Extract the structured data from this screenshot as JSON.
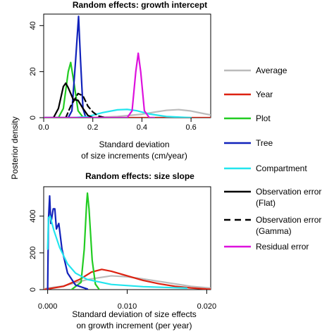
{
  "y_label_shared": "Posterior density",
  "chart_data": [
    {
      "type": "line",
      "title": "Random effects: growth intercept",
      "xlabel_lines": [
        "Standard deviation",
        "of size increments (cm/year)"
      ],
      "ylabel": "",
      "xlim": [
        0,
        0.68
      ],
      "ylim": [
        0,
        45
      ],
      "x_ticks": [
        0.0,
        0.2,
        0.4,
        0.6
      ],
      "x_tick_labels": [
        "0.0",
        "0.2",
        "0.4",
        "0.6"
      ],
      "y_ticks": [
        0,
        20,
        40
      ],
      "y_tick_labels": [
        "0",
        "20",
        "40"
      ],
      "series": [
        {
          "name": "Average",
          "points": [
            [
              0,
              0
            ],
            [
              0.2,
              0.05
            ],
            [
              0.3,
              0.5
            ],
            [
              0.4,
              1.5
            ],
            [
              0.45,
              2.4
            ],
            [
              0.5,
              3.2
            ],
            [
              0.55,
              3.5
            ],
            [
              0.6,
              2.9
            ],
            [
              0.65,
              1.8
            ],
            [
              0.68,
              1.2
            ]
          ]
        },
        {
          "name": "Year",
          "points": [
            [
              0,
              0
            ],
            [
              0.68,
              0
            ]
          ]
        },
        {
          "name": "Plot",
          "points": [
            [
              0,
              0
            ],
            [
              0.06,
              0
            ],
            [
              0.08,
              4
            ],
            [
              0.1,
              20
            ],
            [
              0.11,
              24
            ],
            [
              0.125,
              14
            ],
            [
              0.14,
              3
            ],
            [
              0.16,
              0.2
            ],
            [
              0.18,
              0
            ]
          ]
        },
        {
          "name": "Tree",
          "points": [
            [
              0,
              0
            ],
            [
              0.1,
              0
            ],
            [
              0.115,
              3
            ],
            [
              0.13,
              25
            ],
            [
              0.142,
              44
            ],
            [
              0.15,
              25
            ],
            [
              0.16,
              4
            ],
            [
              0.17,
              0.5
            ],
            [
              0.2,
              0
            ]
          ]
        },
        {
          "name": "Compartment",
          "points": [
            [
              0,
              0
            ],
            [
              0.12,
              0
            ],
            [
              0.18,
              0.5
            ],
            [
              0.24,
              2.2
            ],
            [
              0.3,
              3.4
            ],
            [
              0.34,
              3.6
            ],
            [
              0.38,
              3
            ],
            [
              0.43,
              1.6
            ],
            [
              0.5,
              0.5
            ],
            [
              0.6,
              0
            ]
          ]
        },
        {
          "name": "Observation error (Flat)",
          "points": [
            [
              0.04,
              0
            ],
            [
              0.06,
              4
            ],
            [
              0.08,
              13.5
            ],
            [
              0.09,
              15
            ],
            [
              0.1,
              13
            ],
            [
              0.12,
              8
            ],
            [
              0.14,
              7.5
            ],
            [
              0.16,
              4
            ],
            [
              0.18,
              1
            ],
            [
              0.2,
              0
            ]
          ]
        },
        {
          "name": "Observation error (Gamma)",
          "points": [
            [
              0.09,
              0
            ],
            [
              0.11,
              5
            ],
            [
              0.14,
              10.5
            ],
            [
              0.16,
              9.5
            ],
            [
              0.18,
              5
            ],
            [
              0.2,
              2.5
            ],
            [
              0.22,
              0.8
            ],
            [
              0.25,
              0
            ]
          ]
        },
        {
          "name": "Residual error",
          "points": [
            [
              0,
              0
            ],
            [
              0.34,
              0
            ],
            [
              0.36,
              3
            ],
            [
              0.375,
              20
            ],
            [
              0.385,
              28
            ],
            [
              0.395,
              20
            ],
            [
              0.41,
              3
            ],
            [
              0.43,
              0
            ],
            [
              0.45,
              0
            ]
          ]
        }
      ]
    },
    {
      "type": "line",
      "title": "Random effects: size slope",
      "xlabel_lines": [
        "Standard deviation of size effects",
        "on growth increment (per year)"
      ],
      "ylabel": "",
      "xlim": [
        -0.0005,
        0.0205
      ],
      "ylim": [
        0,
        560
      ],
      "x_ticks": [
        0.0,
        0.01,
        0.02
      ],
      "x_tick_labels": [
        "0.000",
        "0.010",
        "0.020"
      ],
      "y_ticks": [
        0,
        200,
        400
      ],
      "y_tick_labels": [
        "0",
        "200",
        "400"
      ],
      "series": [
        {
          "name": "Average",
          "points": [
            [
              -0.0005,
              5
            ],
            [
              0.002,
              20
            ],
            [
              0.005,
              55
            ],
            [
              0.008,
              75
            ],
            [
              0.01,
              70
            ],
            [
              0.012,
              58
            ],
            [
              0.015,
              38
            ],
            [
              0.018,
              18
            ],
            [
              0.0205,
              8
            ]
          ]
        },
        {
          "name": "Year",
          "points": [
            [
              -0.0005,
              0
            ],
            [
              0.002,
              18
            ],
            [
              0.004,
              55
            ],
            [
              0.0055,
              95
            ],
            [
              0.0068,
              110
            ],
            [
              0.008,
              100
            ],
            [
              0.01,
              75
            ],
            [
              0.012,
              50
            ],
            [
              0.014,
              32
            ],
            [
              0.016,
              18
            ],
            [
              0.018,
              9
            ],
            [
              0.02,
              3
            ],
            [
              0.0205,
              2
            ]
          ]
        },
        {
          "name": "Plot",
          "points": [
            [
              0.003,
              0
            ],
            [
              0.0042,
              40
            ],
            [
              0.0046,
              220
            ],
            [
              0.0049,
              470
            ],
            [
              0.005,
              525
            ],
            [
              0.0052,
              440
            ],
            [
              0.0056,
              160
            ],
            [
              0.006,
              30
            ],
            [
              0.0065,
              0
            ]
          ]
        },
        {
          "name": "Tree",
          "points": [
            [
              0.0,
              0
            ],
            [
              0.0001,
              380
            ],
            [
              0.00025,
              510
            ],
            [
              0.0004,
              360
            ],
            [
              0.0007,
              440
            ],
            [
              0.0009,
              440
            ],
            [
              0.0011,
              330
            ],
            [
              0.0014,
              360
            ],
            [
              0.0018,
              220
            ],
            [
              0.0025,
              90
            ],
            [
              0.0035,
              25
            ],
            [
              0.005,
              3
            ]
          ]
        },
        {
          "name": "Compartment",
          "points": [
            [
              0.0,
              220
            ],
            [
              0.0001,
              390
            ],
            [
              0.0003,
              400
            ],
            [
              0.0008,
              320
            ],
            [
              0.0015,
              230
            ],
            [
              0.0025,
              140
            ],
            [
              0.0035,
              90
            ],
            [
              0.005,
              55
            ],
            [
              0.008,
              28
            ],
            [
              0.012,
              16
            ],
            [
              0.0175,
              8
            ]
          ]
        },
        {
          "name": "Observation error (Flat)",
          "points": []
        },
        {
          "name": "Observation error (Gamma)",
          "points": []
        },
        {
          "name": "Residual error",
          "points": []
        }
      ]
    }
  ],
  "legend": {
    "items": [
      {
        "label_lines": [
          "Average"
        ],
        "color": "#bbbbbb",
        "dash": ""
      },
      {
        "label_lines": [
          "Year"
        ],
        "color": "#dd2211",
        "dash": ""
      },
      {
        "label_lines": [
          "Plot"
        ],
        "color": "#22cc22",
        "dash": ""
      },
      {
        "label_lines": [
          "Tree"
        ],
        "color": "#1122bb",
        "dash": ""
      },
      {
        "label_lines": [
          "Compartment"
        ],
        "color": "#22e5ee",
        "dash": ""
      },
      {
        "label_lines": [
          "Observation error",
          "(Flat)"
        ],
        "color": "#000000",
        "dash": ""
      },
      {
        "label_lines": [
          "Observation error",
          "(Gamma)"
        ],
        "color": "#000000",
        "dash": "9,6"
      },
      {
        "label_lines": [
          "Residual error"
        ],
        "color": "#dd11dd",
        "dash": ""
      }
    ]
  },
  "series_colors": [
    "#bbbbbb",
    "#dd2211",
    "#22cc22",
    "#1122bb",
    "#22e5ee",
    "#000000",
    "#000000",
    "#dd11dd"
  ],
  "series_dashes": [
    "",
    "",
    "",
    "",
    "",
    "",
    "7,5",
    ""
  ]
}
